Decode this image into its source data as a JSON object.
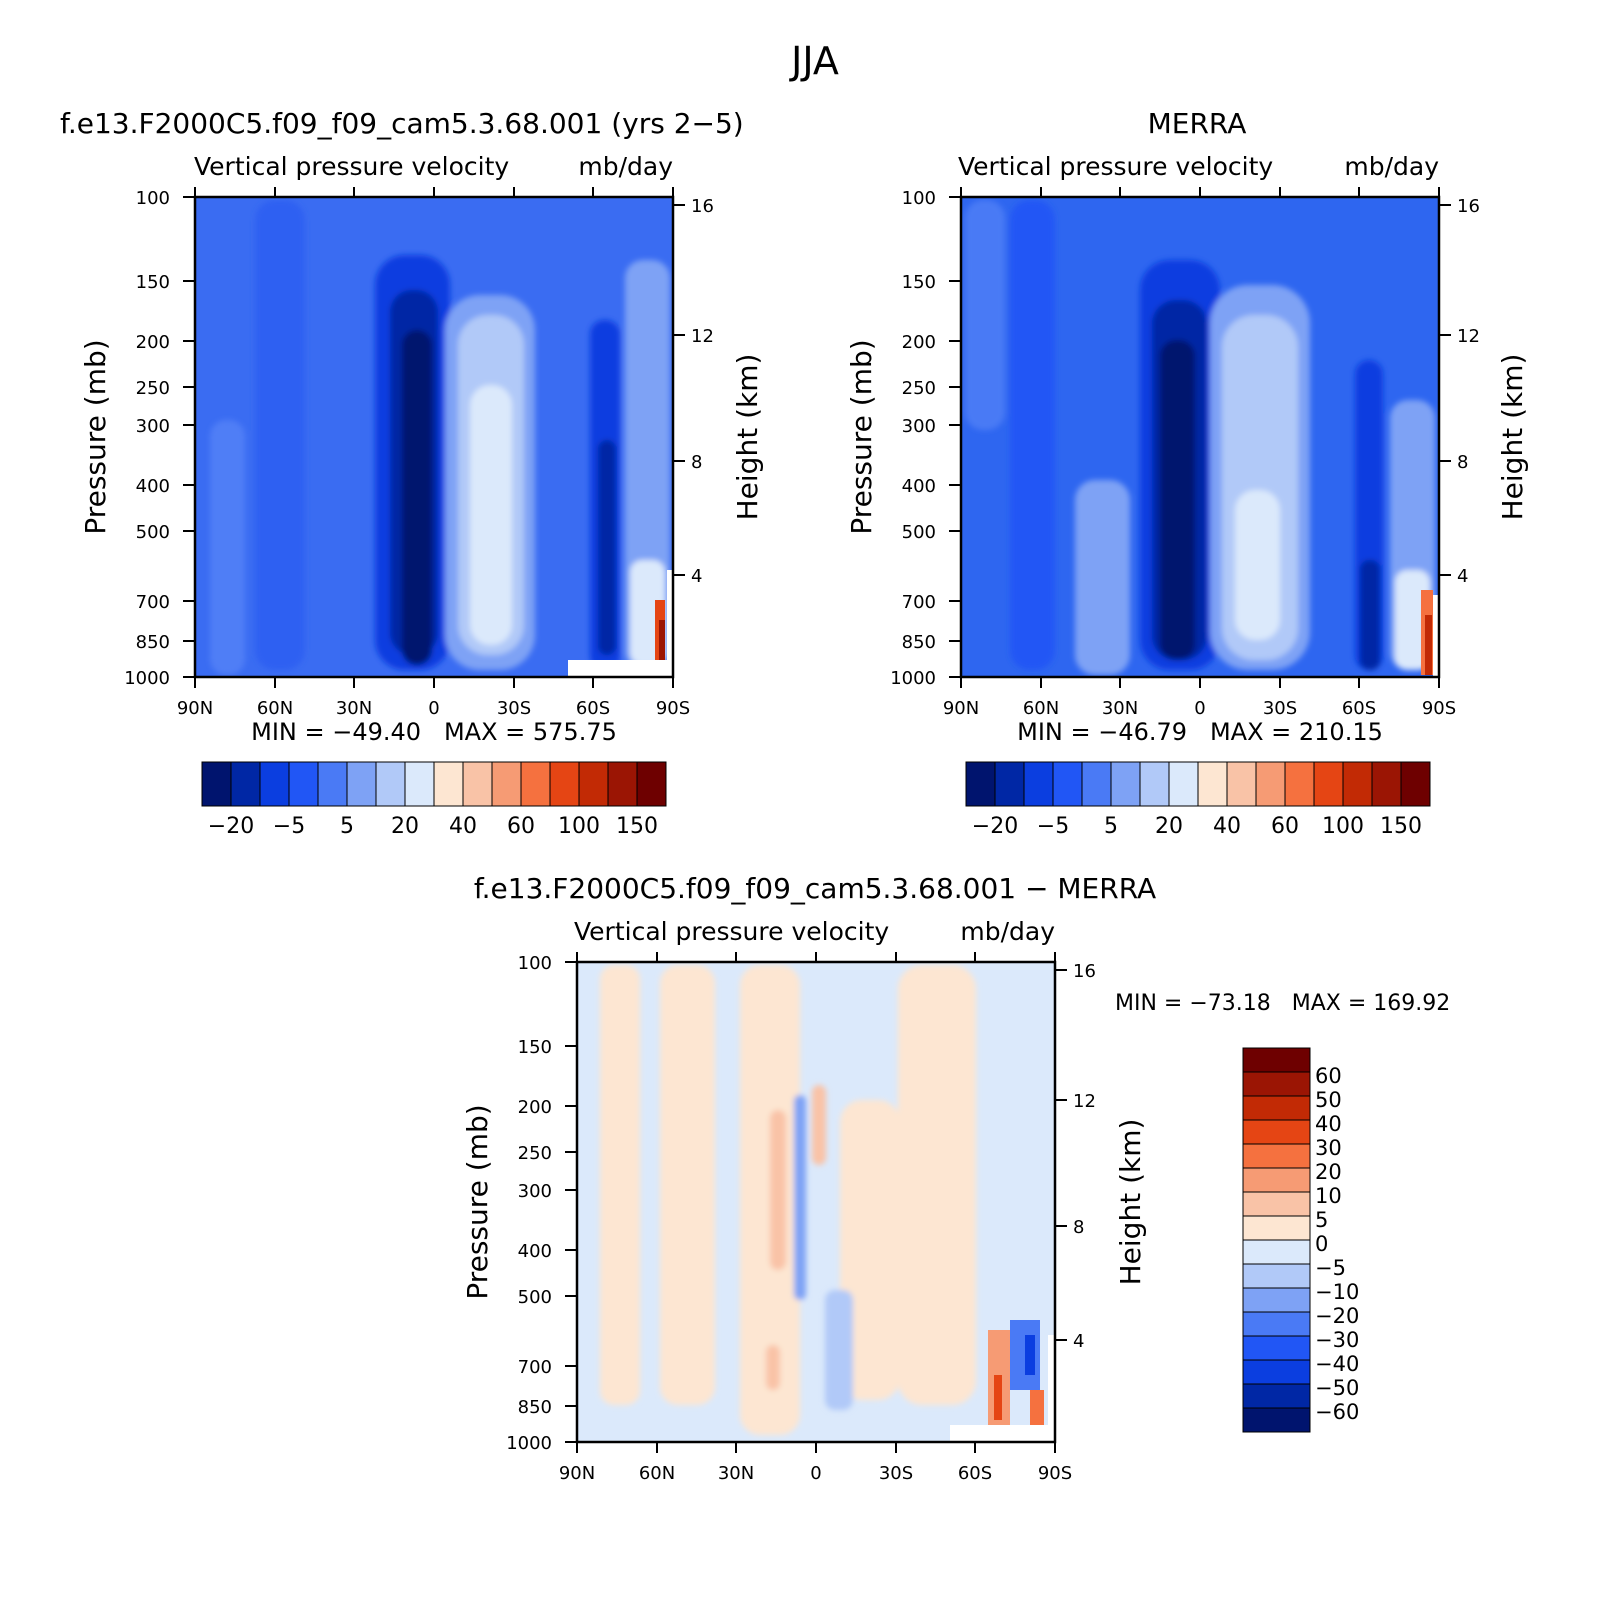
{
  "figure": {
    "title": "JJA"
  },
  "chart_data": [
    {
      "type": "heatmap",
      "title": "f.e13.F2000C5.f09_f09_cam5.3.68.001 (yrs 2−5)",
      "subtitle_left": "Vertical pressure velocity",
      "subtitle_right": "mb/day",
      "ylabel": "Pressure (mb)",
      "y2label": "Height (km)",
      "xticks": [
        "90N",
        "60N",
        "30N",
        "0",
        "30S",
        "60S",
        "90S"
      ],
      "yticks": [
        100,
        150,
        200,
        250,
        300,
        400,
        500,
        700,
        850,
        1000
      ],
      "y2ticks": [
        16,
        12,
        8,
        4
      ],
      "ylim": [
        1000,
        100
      ],
      "stats": "MIN = −49.40   MAX = 575.75",
      "min": -49.4,
      "max": 575.75,
      "colorbar_labels": [
        "−20",
        "−5",
        "5",
        "20",
        "40",
        "60",
        "100",
        "150"
      ]
    },
    {
      "type": "heatmap",
      "title": "MERRA",
      "subtitle_left": "Vertical pressure velocity",
      "subtitle_right": "mb/day",
      "ylabel": "Pressure (mb)",
      "y2label": "Height (km)",
      "xticks": [
        "90N",
        "60N",
        "30N",
        "0",
        "30S",
        "60S",
        "90S"
      ],
      "yticks": [
        100,
        150,
        200,
        250,
        300,
        400,
        500,
        700,
        850,
        1000
      ],
      "y2ticks": [
        16,
        12,
        8,
        4
      ],
      "ylim": [
        1000,
        100
      ],
      "stats": "MIN = −46.79   MAX = 210.15",
      "min": -46.79,
      "max": 210.15,
      "colorbar_labels": [
        "−20",
        "−5",
        "5",
        "20",
        "40",
        "60",
        "100",
        "150"
      ]
    },
    {
      "type": "heatmap",
      "title": "f.e13.F2000C5.f09_f09_cam5.3.68.001 − MERRA",
      "subtitle_left": "Vertical pressure velocity",
      "subtitle_right": "mb/day",
      "ylabel": "Pressure (mb)",
      "y2label": "Height (km)",
      "xticks": [
        "90N",
        "60N",
        "30N",
        "0",
        "30S",
        "60S",
        "90S"
      ],
      "yticks": [
        100,
        150,
        200,
        250,
        300,
        400,
        500,
        700,
        850,
        1000
      ],
      "y2ticks": [
        16,
        12,
        8,
        4
      ],
      "ylim": [
        1000,
        100
      ],
      "stats": "MIN = −73.18   MAX = 169.92",
      "min": -73.18,
      "max": 169.92,
      "colorbar_labels": [
        "60",
        "50",
        "40",
        "30",
        "20",
        "10",
        "5",
        "0",
        "−5",
        "−10",
        "−20",
        "−30",
        "−40",
        "−50",
        "−60"
      ]
    }
  ],
  "colors": {
    "scale": [
      "#00146e",
      "#0027a5",
      "#0b3ee0",
      "#2156f5",
      "#4a7af5",
      "#7ea2f5",
      "#b1c9f8",
      "#dbe9fb",
      "#fde6d2",
      "#f9c3a7",
      "#f69b74",
      "#f5713f",
      "#e54514",
      "#c22a05",
      "#9b1504",
      "#6e0000"
    ],
    "bg_ctrl": "#2e66f0",
    "bg_diff": "#dbe9fb"
  }
}
